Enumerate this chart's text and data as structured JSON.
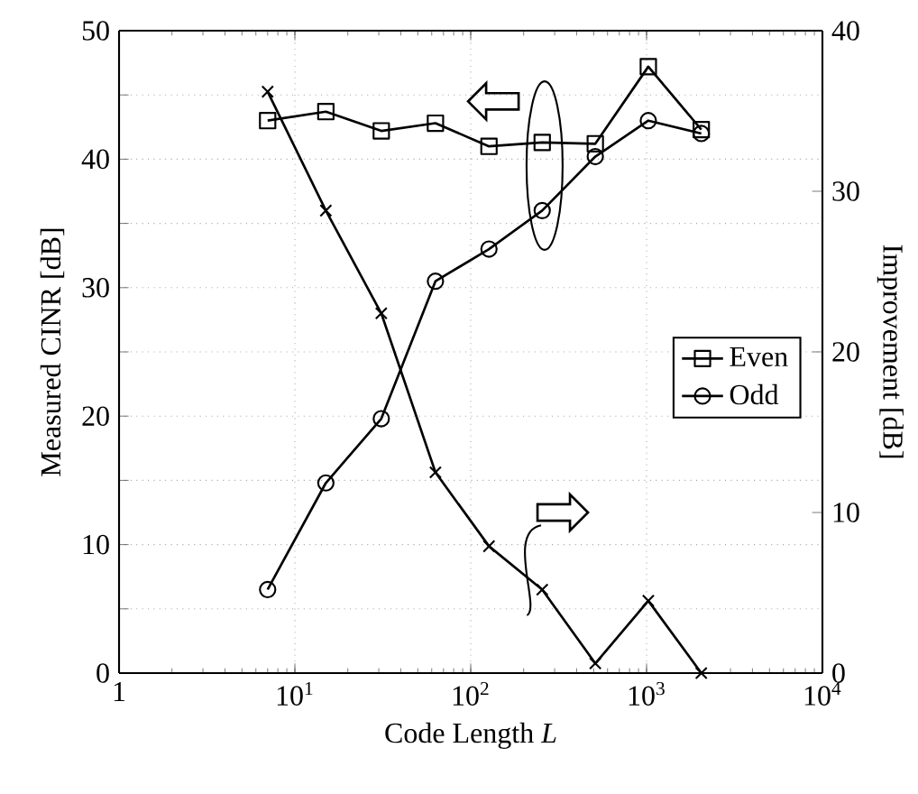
{
  "chart_data": {
    "type": "line",
    "xlabel": "Code Length *L*",
    "ylabel": "Measured CINR [dB]",
    "y2label": "Improvement [dB]",
    "log": "x",
    "grid": true,
    "legend": "right",
    "line_style": "solid",
    "x": [
      7,
      15,
      31,
      63,
      127,
      255,
      511,
      1023,
      2047
    ],
    "xlim": [
      1,
      10000
    ],
    "xticks": [
      1,
      {
        "value": 10,
        "label": "10$^{1}$"
      },
      {
        "value": 100,
        "label": "10$^{2}$"
      },
      {
        "value": 1000,
        "label": "10$^{3}$"
      },
      {
        "value": 10000,
        "label": "10$^{4}$"
      }
    ],
    "ylim": [
      0,
      50
    ],
    "yticks": [
      0,
      {
        "value": 5,
        "label": null
      },
      10,
      {
        "value": 15,
        "label": null
      },
      20,
      {
        "value": 25,
        "label": null
      },
      30,
      {
        "value": 35,
        "label": null
      },
      40,
      {
        "value": 45,
        "label": null
      },
      50
    ],
    "y2lim": [
      0,
      40
    ],
    "y2ticks": [
      0,
      10,
      20,
      30,
      40
    ],
    "series": [
      {
        "name": "Even",
        "color": "#000000",
        "marker": "square",
        "values": [
          43,
          43.7,
          42.2,
          42.8,
          41,
          41.3,
          41.2,
          47.2,
          42.3
        ]
      },
      {
        "name": "Odd",
        "color": "#000000",
        "marker": "circle",
        "values": [
          6.5,
          14.8,
          19.8,
          30.5,
          33,
          36,
          40.2,
          43,
          42
        ]
      },
      {
        "color": "#000000",
        "marker": "cross",
        "axis": "y2",
        "values": [
          36.2,
          28.8,
          22.4,
          12.5,
          7.9,
          5.2,
          0.6,
          4.5,
          0
        ]
      }
    ]
  }
}
